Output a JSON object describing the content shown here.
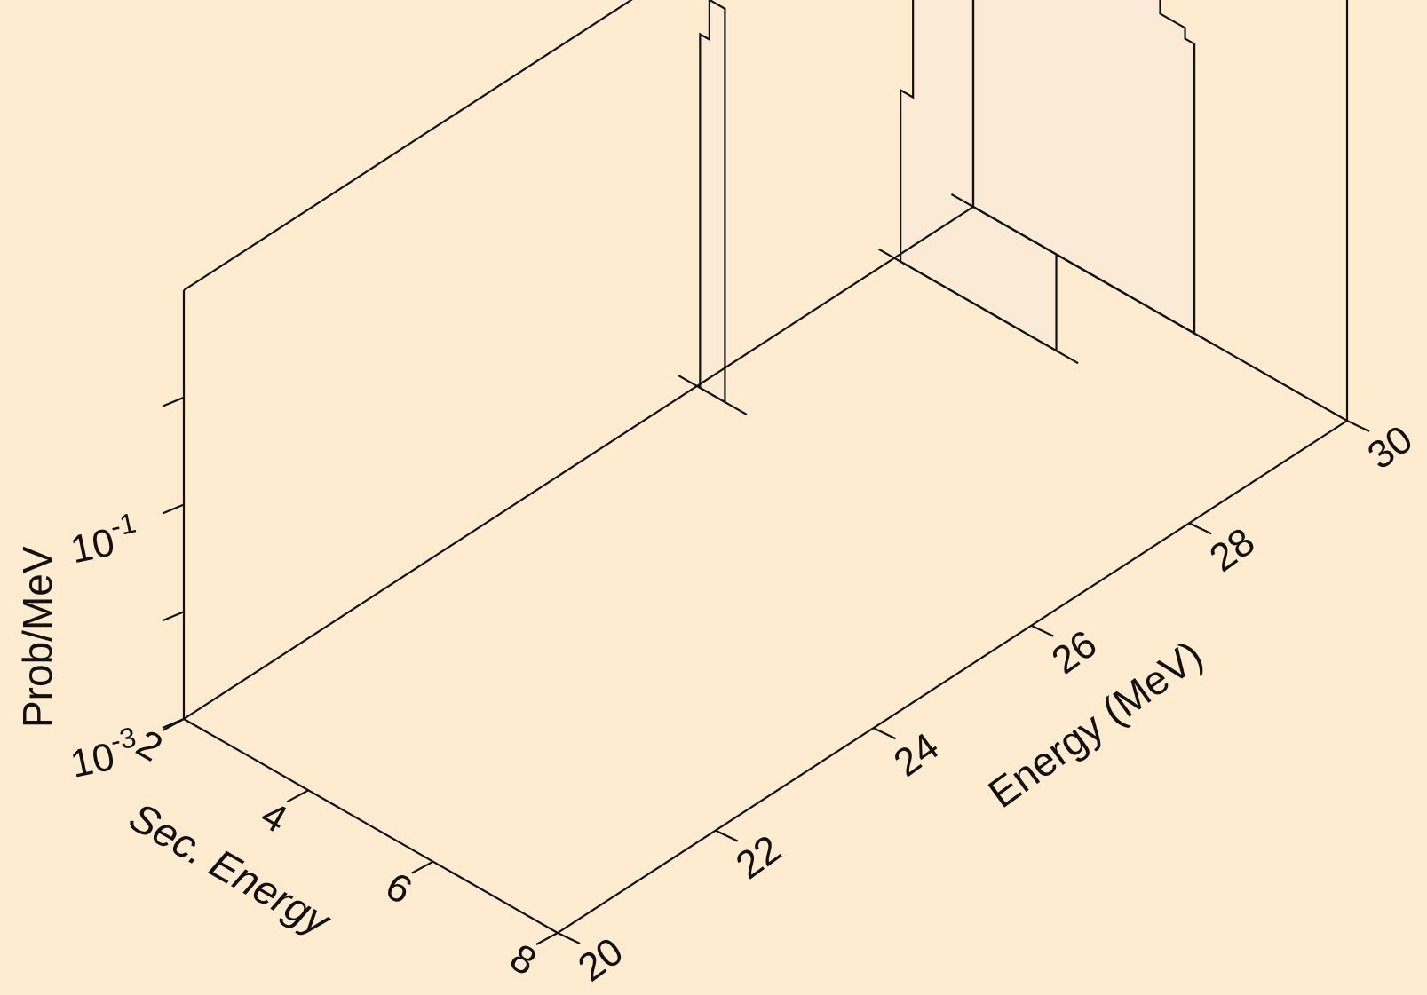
{
  "chart_data": {
    "type": "3d-stepped-histogram",
    "zlabel": "Prob/MeV",
    "xlabel": "Sec. Energy",
    "ylabel": "Energy (MeV)",
    "zscale": "log",
    "x_range": [
      2,
      8
    ],
    "y_range": [
      20,
      30
    ],
    "z_range_exponent": [
      -3,
      1
    ],
    "x_ticks": [
      "2",
      "4",
      "6",
      "8"
    ],
    "y_ticks": [
      "20",
      "22",
      "24",
      "26",
      "28",
      "30"
    ],
    "z_ticks": [
      {
        "base": "10",
        "exp": "-3"
      },
      {
        "base": "10",
        "exp": "-1"
      }
    ],
    "colors": {
      "background": "#ffecd0",
      "slice_fill": "#fbebd6",
      "line": "#111111"
    },
    "slices": [
      {
        "energy": 26.5,
        "steps": [
          {
            "x0": 2.05,
            "x1": 2.2,
            "log_y": 0.3
          },
          {
            "x0": 2.2,
            "x1": 2.3,
            "log_y": 0.67
          },
          {
            "x0": 2.3,
            "x1": 2.45,
            "log_y": 0.67
          }
        ]
      },
      {
        "energy": 29.0,
        "steps": [
          {
            "x0": 2.1,
            "x1": 2.3,
            "log_y": -1.4
          },
          {
            "x0": 2.3,
            "x1": 2.6,
            "log_y": -0.3
          },
          {
            "x0": 2.6,
            "x1": 3.0,
            "log_y": 0.47
          },
          {
            "x0": 3.0,
            "x1": 3.3,
            "log_y": 0.26
          },
          {
            "x0": 3.3,
            "x1": 3.7,
            "log_y": 0.85
          },
          {
            "x0": 3.7,
            "x1": 4.2,
            "log_y": 0.05
          },
          {
            "x0": 4.2,
            "x1": 4.6,
            "log_y": -0.4
          }
        ]
      },
      {
        "energy": 30.0,
        "steps": [
          {
            "x0": 2.0,
            "x1": 2.5,
            "log_y": -0.4
          },
          {
            "x0": 2.5,
            "x1": 3.0,
            "log_y": 0.05
          },
          {
            "x0": 3.0,
            "x1": 3.6,
            "log_y": 0.45
          },
          {
            "x0": 3.6,
            "x1": 4.1,
            "log_y": 0.88
          },
          {
            "x0": 4.1,
            "x1": 4.4,
            "log_y": 0.9
          },
          {
            "x0": 4.4,
            "x1": 4.7,
            "log_y": 0.82
          },
          {
            "x0": 4.7,
            "x1": 5.0,
            "log_y": 0.55
          },
          {
            "x0": 5.0,
            "x1": 5.4,
            "log_y": -0.2
          },
          {
            "x0": 5.4,
            "x1": 5.55,
            "log_y": -0.3
          }
        ]
      }
    ]
  }
}
